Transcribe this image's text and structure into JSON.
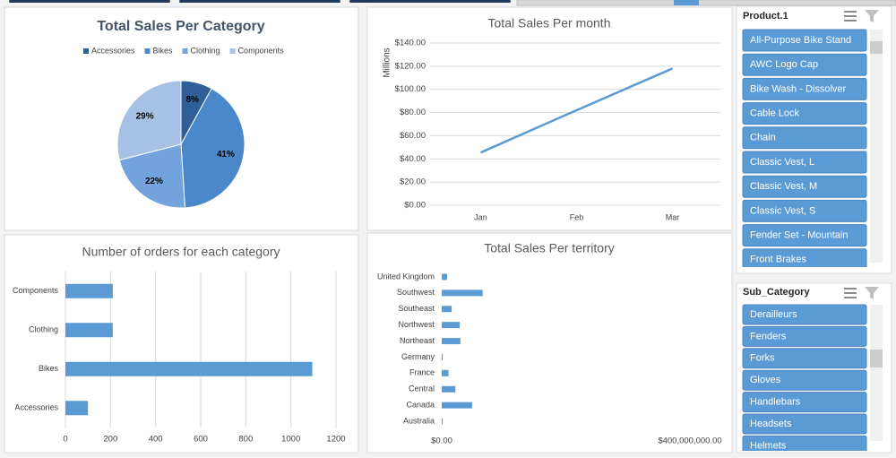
{
  "chart_data": [
    {
      "type": "pie",
      "title": "Total Sales Per Category",
      "categories": [
        "Accessories",
        "Bikes",
        "Clothing",
        "Components"
      ],
      "values": [
        8,
        41,
        22,
        29
      ],
      "value_labels": [
        "8%",
        "41%",
        "22%",
        "29%"
      ],
      "colors": [
        "#2f5f98",
        "#4a88cb",
        "#72a3dc",
        "#a7c1e4"
      ],
      "legend": "top"
    },
    {
      "type": "line",
      "title": "Total Sales Per month",
      "y_label": "Millions",
      "categories": [
        "Jan",
        "Feb",
        "Mar"
      ],
      "values": [
        45.5,
        82,
        118
      ],
      "color": "#5b9bd5",
      "ylim": [
        0,
        140
      ],
      "yticks": [
        {
          "value": 0,
          "label": "$0.00"
        },
        {
          "value": 20,
          "label": "$20.00"
        },
        {
          "value": 40,
          "label": "$40.00"
        },
        {
          "value": 60,
          "label": "$60.00"
        },
        {
          "value": 80,
          "label": "$80.00"
        },
        {
          "value": 100,
          "label": "$100.00"
        },
        {
          "value": 120,
          "label": "$120.00"
        },
        {
          "value": 140,
          "label": "$140.00"
        }
      ],
      "grid": true
    },
    {
      "type": "barh",
      "title": "Number of orders for each category",
      "categories": [
        "Accessories",
        "Bikes",
        "Clothing",
        "Components"
      ],
      "values": [
        100,
        1095,
        210,
        210
      ],
      "color": "#5b9bd5",
      "xlim": [
        0,
        1200
      ],
      "xticks": [
        0,
        200,
        400,
        600,
        800,
        1000,
        1200
      ],
      "grid": true
    },
    {
      "type": "barh",
      "title": "Total Sales Per territory",
      "categories": [
        "Australia",
        "Canada",
        "Central",
        "France",
        "Germany",
        "Northeast",
        "Northwest",
        "Southeast",
        "Southwest",
        "United Kingdom"
      ],
      "values": [
        1500000,
        49000000,
        22000000,
        11000000,
        1500000,
        30000000,
        29000000,
        16000000,
        66000000,
        8700000
      ],
      "color": "#5b9bd5",
      "xlim": [
        0,
        400000000
      ],
      "xticks": [
        {
          "value": 0,
          "label": "$0.00"
        },
        {
          "value": 400000000,
          "label": "$400,000,000.00"
        }
      ],
      "grid": false
    }
  ],
  "slicers": [
    {
      "title": "Product.1",
      "items": [
        "All-Purpose Bike Stand",
        "AWC Logo Cap",
        "Bike Wash - Dissolver",
        "Cable Lock",
        "Chain",
        "Classic Vest, L",
        "Classic Vest, M",
        "Classic Vest, S",
        "Fender Set - Mountain",
        "Front Brakes"
      ]
    },
    {
      "title": "Sub_Category",
      "items": [
        "Derailleurs",
        "Fenders",
        "Forks",
        "Gloves",
        "Handlebars",
        "Headsets",
        "Helmets"
      ]
    }
  ]
}
